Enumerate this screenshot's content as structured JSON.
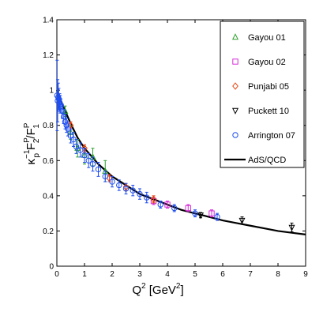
{
  "chart_data": {
    "type": "scatter",
    "xlabel_main": "Q",
    "xlabel_sup": "2",
    "xlabel_unit_open": " [GeV",
    "xlabel_unit_sup": "2",
    "xlabel_unit_close": "]",
    "ylabel": {
      "kappa": "κ",
      "kappa_sup": "−1",
      "p": "p",
      "F1": "F",
      "F1_sub": "1",
      "F1_sup": "P",
      "F2": "F",
      "F2_sub": "2",
      "F2_sup": "P",
      "slash": "/"
    },
    "xlim": [
      0,
      9
    ],
    "ylim": [
      0,
      1.4
    ],
    "xticks": [
      "0",
      "1",
      "2",
      "3",
      "4",
      "5",
      "6",
      "7",
      "8",
      "9"
    ],
    "yticks": [
      "0",
      "0.2",
      "0.4",
      "0.6",
      "0.8",
      "1",
      "1.2",
      "1.4"
    ],
    "legend_position": "top-right",
    "series": [
      {
        "name": "Gayou 01",
        "marker": "triangle-up",
        "color": "#2ca02c",
        "points": [
          {
            "x": 0.3,
            "y": 0.88,
            "err": 0.03
          },
          {
            "x": 0.5,
            "y": 0.76,
            "err": 0.04
          },
          {
            "x": 0.75,
            "y": 0.67,
            "err": 0.05
          },
          {
            "x": 1.0,
            "y": 0.63,
            "err": 0.05
          },
          {
            "x": 1.3,
            "y": 0.62,
            "err": 0.05
          },
          {
            "x": 1.75,
            "y": 0.54,
            "err": 0.06
          }
        ]
      },
      {
        "name": "Gayou 02",
        "marker": "square",
        "color": "#d62ad6",
        "points": [
          {
            "x": 3.5,
            "y": 0.37,
            "err": 0.02
          },
          {
            "x": 4.0,
            "y": 0.35,
            "err": 0.02
          },
          {
            "x": 4.75,
            "y": 0.33,
            "err": 0.02
          },
          {
            "x": 5.6,
            "y": 0.3,
            "err": 0.02
          }
        ]
      },
      {
        "name": "Punjabi 05",
        "marker": "diamond",
        "color": "#e8410f",
        "points": [
          {
            "x": 0.5,
            "y": 0.8,
            "err": 0.02
          },
          {
            "x": 1.0,
            "y": 0.67,
            "err": 0.02
          },
          {
            "x": 1.9,
            "y": 0.5,
            "err": 0.02
          },
          {
            "x": 2.5,
            "y": 0.45,
            "err": 0.02
          },
          {
            "x": 3.5,
            "y": 0.38,
            "err": 0.02
          }
        ]
      },
      {
        "name": "Puckett 10",
        "marker": "triangle-down",
        "color": "#000000",
        "points": [
          {
            "x": 5.2,
            "y": 0.29,
            "err": 0.015
          },
          {
            "x": 6.7,
            "y": 0.26,
            "err": 0.02
          },
          {
            "x": 8.5,
            "y": 0.22,
            "err": 0.025
          }
        ]
      },
      {
        "name": "Arrington 07",
        "marker": "circle",
        "color": "#1f4ef0",
        "points": [
          {
            "x": 0.01,
            "y": 0.97,
            "err": 0.2
          },
          {
            "x": 0.03,
            "y": 0.94,
            "err": 0.12
          },
          {
            "x": 0.05,
            "y": 0.96,
            "err": 0.08
          },
          {
            "x": 0.07,
            "y": 0.95,
            "err": 0.06
          },
          {
            "x": 0.1,
            "y": 0.93,
            "err": 0.05
          },
          {
            "x": 0.12,
            "y": 0.92,
            "err": 0.05
          },
          {
            "x": 0.15,
            "y": 0.91,
            "err": 0.04
          },
          {
            "x": 0.2,
            "y": 0.88,
            "err": 0.04
          },
          {
            "x": 0.25,
            "y": 0.85,
            "err": 0.04
          },
          {
            "x": 0.3,
            "y": 0.82,
            "err": 0.04
          },
          {
            "x": 0.35,
            "y": 0.8,
            "err": 0.04
          },
          {
            "x": 0.4,
            "y": 0.78,
            "err": 0.04
          },
          {
            "x": 0.5,
            "y": 0.74,
            "err": 0.04
          },
          {
            "x": 0.6,
            "y": 0.72,
            "err": 0.04
          },
          {
            "x": 0.7,
            "y": 0.68,
            "err": 0.04
          },
          {
            "x": 0.85,
            "y": 0.66,
            "err": 0.04
          },
          {
            "x": 1.0,
            "y": 0.63,
            "err": 0.04
          },
          {
            "x": 1.15,
            "y": 0.6,
            "err": 0.04
          },
          {
            "x": 1.3,
            "y": 0.58,
            "err": 0.04
          },
          {
            "x": 1.5,
            "y": 0.55,
            "err": 0.04
          },
          {
            "x": 1.75,
            "y": 0.51,
            "err": 0.03
          },
          {
            "x": 2.0,
            "y": 0.48,
            "err": 0.03
          },
          {
            "x": 2.25,
            "y": 0.46,
            "err": 0.03
          },
          {
            "x": 2.5,
            "y": 0.44,
            "err": 0.03
          },
          {
            "x": 2.75,
            "y": 0.43,
            "err": 0.03
          },
          {
            "x": 3.0,
            "y": 0.41,
            "err": 0.03
          },
          {
            "x": 3.25,
            "y": 0.39,
            "err": 0.03
          },
          {
            "x": 3.75,
            "y": 0.35,
            "err": 0.02
          },
          {
            "x": 4.25,
            "y": 0.33,
            "err": 0.02
          },
          {
            "x": 5.0,
            "y": 0.3,
            "err": 0.02
          },
          {
            "x": 5.8,
            "y": 0.28,
            "err": 0.02
          }
        ]
      },
      {
        "name": "AdS/QCD",
        "marker": "line",
        "color": "#000000",
        "curve": {
          "x": [
            0.0,
            0.1,
            0.25,
            0.5,
            0.75,
            1.0,
            1.5,
            2.0,
            2.5,
            3.0,
            3.5,
            4.0,
            4.5,
            5.0,
            5.5,
            6.0,
            6.5,
            7.0,
            7.5,
            8.0,
            8.5,
            9.0
          ],
          "y": [
            1.0,
            0.96,
            0.9,
            0.81,
            0.73,
            0.67,
            0.58,
            0.51,
            0.46,
            0.41,
            0.38,
            0.35,
            0.32,
            0.3,
            0.28,
            0.26,
            0.245,
            0.23,
            0.215,
            0.2,
            0.19,
            0.18
          ]
        }
      }
    ]
  }
}
